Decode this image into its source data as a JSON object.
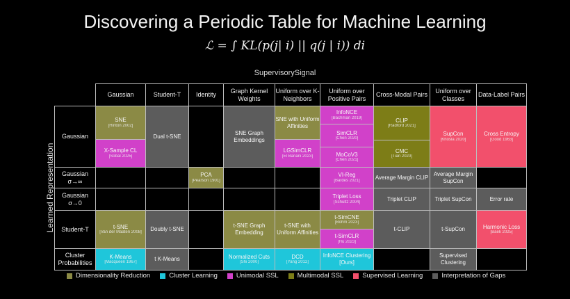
{
  "title": "Discovering a Periodic Table for Machine Learning",
  "formula": "ℒ = ∫ KL(p(j| i) || q(j | i)) di",
  "column_axis_label": "SupervisorySignal",
  "row_axis_label": "Learned Representation",
  "colors": {
    "dr": "#8b8a45",
    "cl": "#1fc6da",
    "us": "#d141c9",
    "mm": "#7d7d17",
    "sl": "#f2506c",
    "gap": "#5c5c5c"
  },
  "columns": [
    "Gaussian",
    "Student-T",
    "Identity",
    "Graph Kernel Weights",
    "Uniform over K-Neighbors",
    "Uniform over Positive Pairs",
    "Cross-Modal Pairs",
    "Uniform over Classes",
    "Data-Label Pairs"
  ],
  "rows": [
    "Gaussian",
    "Gaussian σ→∞",
    "Gaussian σ→0",
    "Student-T",
    "Cluster Probabilities"
  ],
  "cells": [
    {
      "row": 0,
      "col": 0,
      "stack": [
        {
          "t": "SNE",
          "c": "[Hinton 2002]",
          "k": "dr",
          "w": 48
        },
        {
          "t": "X-Sample CL",
          "c": "[Sobal 2025]",
          "k": "us",
          "w": 40
        }
      ]
    },
    {
      "row": 0,
      "col": 1,
      "stack": [
        {
          "t": "Dual t-SNE",
          "c": "",
          "k": "gap",
          "w": 1
        }
      ]
    },
    {
      "row": 0,
      "col": 3,
      "stack": [
        {
          "t": "SNE Graph Embeddings",
          "c": "",
          "k": "gap",
          "w": 1
        }
      ]
    },
    {
      "row": 0,
      "col": 4,
      "stack": [
        {
          "t": "SNE with Uniform Affinities",
          "c": "",
          "k": "dr",
          "w": 48
        },
        {
          "t": "LGSimCLR",
          "c": "[El Banani 2023]",
          "k": "us",
          "w": 40
        }
      ]
    },
    {
      "row": 0,
      "col": 5,
      "stack": [
        {
          "t": "InfoNCE",
          "c": "[Bachman 2019]",
          "k": "us",
          "w": 26
        },
        {
          "t": "SimCLR",
          "c": "[Chen 2020]",
          "k": "us",
          "w": 33
        },
        {
          "t": "MoCoV3",
          "c": "[Chen 2021]",
          "k": "us",
          "w": 29
        }
      ]
    },
    {
      "row": 0,
      "col": 6,
      "stack": [
        {
          "t": "CLIP",
          "c": "[Radford 2021]",
          "k": "mm",
          "w": 49
        },
        {
          "t": "CMC",
          "c": "[Tian 2020]",
          "k": "mm",
          "w": 39
        }
      ]
    },
    {
      "row": 0,
      "col": 7,
      "stack": [
        {
          "t": "SupCon",
          "c": "[Khosla 2020]",
          "k": "sl",
          "w": 1
        }
      ]
    },
    {
      "row": 0,
      "col": 8,
      "stack": [
        {
          "t": "Cross Entropy",
          "c": "[Good 1963]",
          "k": "sl",
          "w": 1
        }
      ]
    },
    {
      "row": 1,
      "col": 2,
      "stack": [
        {
          "t": "PCA",
          "c": "[Pearson 1901]",
          "k": "dr",
          "w": 1
        }
      ]
    },
    {
      "row": 1,
      "col": 5,
      "stack": [
        {
          "t": "VI-Reg",
          "c": "[Bardes 2021]",
          "k": "us",
          "w": 1
        }
      ]
    },
    {
      "row": 1,
      "col": 6,
      "stack": [
        {
          "t": "Average Margin CLIP",
          "c": "",
          "k": "gap",
          "w": 1
        }
      ]
    },
    {
      "row": 1,
      "col": 7,
      "stack": [
        {
          "t": "Average Margin SupCon",
          "c": "",
          "k": "gap",
          "w": 1
        }
      ]
    },
    {
      "row": 2,
      "col": 5,
      "stack": [
        {
          "t": "Triplet Loss",
          "c": "[Schultz 2004]",
          "k": "us",
          "w": 1
        }
      ]
    },
    {
      "row": 2,
      "col": 6,
      "stack": [
        {
          "t": "Triplet CLIP",
          "c": "",
          "k": "gap",
          "w": 1
        }
      ]
    },
    {
      "row": 2,
      "col": 7,
      "stack": [
        {
          "t": "Triplet SupCon",
          "c": "",
          "k": "gap",
          "w": 1
        }
      ]
    },
    {
      "row": 2,
      "col": 8,
      "stack": [
        {
          "t": "Error rate",
          "c": "",
          "k": "gap",
          "w": 1
        }
      ]
    },
    {
      "row": 3,
      "col": 0,
      "stack": [
        {
          "t": "t-SNE",
          "c": "[Van der Maaten 2008]",
          "k": "dr",
          "w": 1
        }
      ]
    },
    {
      "row": 3,
      "col": 1,
      "stack": [
        {
          "t": "Doubly t-SNE",
          "c": "",
          "k": "gap",
          "w": 1
        }
      ]
    },
    {
      "row": 3,
      "col": 3,
      "stack": [
        {
          "t": "t-SNE Graph Embedding",
          "c": "",
          "k": "dr",
          "w": 1
        }
      ]
    },
    {
      "row": 3,
      "col": 4,
      "stack": [
        {
          "t": "t-SNE with Uniform Affinities",
          "c": "",
          "k": "dr",
          "w": 1
        }
      ]
    },
    {
      "row": 3,
      "col": 5,
      "stack": [
        {
          "t": "t-SimCNE",
          "c": "[Bohm 2023]",
          "k": "dr",
          "w": 27
        },
        {
          "t": "t-SimCLR",
          "c": "[Hu 2023]",
          "k": "us",
          "w": 28
        }
      ]
    },
    {
      "row": 3,
      "col": 6,
      "stack": [
        {
          "t": "t-CLIP",
          "c": "",
          "k": "gap",
          "w": 1
        }
      ]
    },
    {
      "row": 3,
      "col": 7,
      "stack": [
        {
          "t": "t-SupCon",
          "c": "",
          "k": "gap",
          "w": 1
        }
      ]
    },
    {
      "row": 3,
      "col": 8,
      "stack": [
        {
          "t": "Harmonic Loss",
          "c": "[Baek 2025]",
          "k": "sl",
          "w": 1
        }
      ]
    },
    {
      "row": 4,
      "col": 0,
      "stack": [
        {
          "t": "K-Means",
          "c": "[Macqueen 1967]",
          "k": "cl",
          "w": 1
        }
      ]
    },
    {
      "row": 4,
      "col": 1,
      "stack": [
        {
          "t": "t K-Means",
          "c": "",
          "k": "gap",
          "w": 1
        }
      ]
    },
    {
      "row": 4,
      "col": 3,
      "stack": [
        {
          "t": "Normalized Cuts",
          "c": "[Shi 2000]",
          "k": "cl",
          "w": 1
        }
      ]
    },
    {
      "row": 4,
      "col": 4,
      "stack": [
        {
          "t": "DCD",
          "c": "[Yang 2012]",
          "k": "cl",
          "w": 1
        }
      ]
    },
    {
      "row": 4,
      "col": 5,
      "stack": [
        {
          "t": "InfoNCE Clustering [Ours]",
          "c": "",
          "k": "cl",
          "w": 1
        }
      ]
    },
    {
      "row": 4,
      "col": 7,
      "stack": [
        {
          "t": "Supervised Clustering",
          "c": "",
          "k": "gap",
          "w": 1
        }
      ]
    }
  ],
  "legend": [
    {
      "label": "Dimensionality Reduction",
      "k": "dr"
    },
    {
      "label": "Cluster Learning",
      "k": "cl"
    },
    {
      "label": "Unimodal SSL",
      "k": "us"
    },
    {
      "label": "Multimodal SSL",
      "k": "mm"
    },
    {
      "label": "Supervised Learning",
      "k": "sl"
    },
    {
      "label": "Interpretation of Gaps",
      "k": "gap"
    }
  ]
}
